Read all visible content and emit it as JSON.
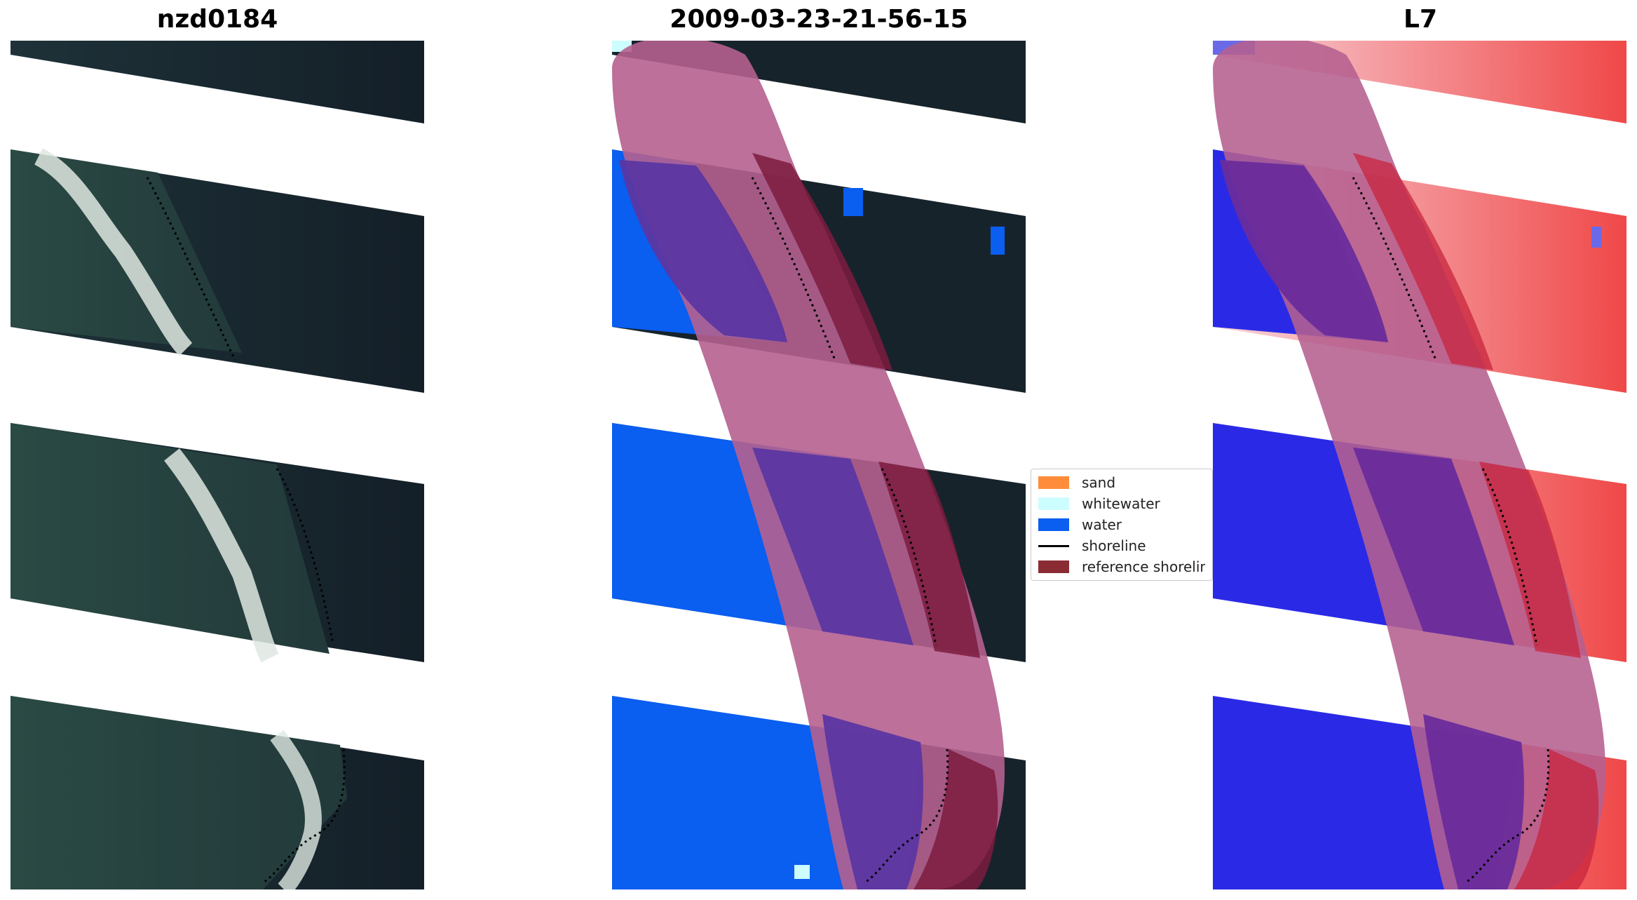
{
  "panels": {
    "left_title": "nzd0184",
    "middle_title": "2009-03-23-21-56-15",
    "right_title": "L7"
  },
  "legend": {
    "items": [
      {
        "label": "sand",
        "color": "#ff8c3a",
        "kind": "box"
      },
      {
        "label": "whitewater",
        "color": "#ccfdff",
        "kind": "box"
      },
      {
        "label": "water",
        "color": "#0a5ef0",
        "kind": "box"
      },
      {
        "label": "shoreline",
        "color": "#000000",
        "kind": "line"
      },
      {
        "label": "reference shorelin",
        "color": "#8b2c34",
        "kind": "box"
      }
    ]
  },
  "colors": {
    "land_dark": "#15212a",
    "land_mid": "#24343a",
    "ocean": "#26403e",
    "surf": "#dfe8e2",
    "water_class": "#0a5ef0",
    "buffer_overlay": "#b5608f",
    "buffer_over_water": "#5c36a2",
    "reference_band": "#7d1b3e",
    "index_red": "#f03838",
    "index_blue": "#2a2ae6",
    "index_white": "#f4ecef"
  }
}
